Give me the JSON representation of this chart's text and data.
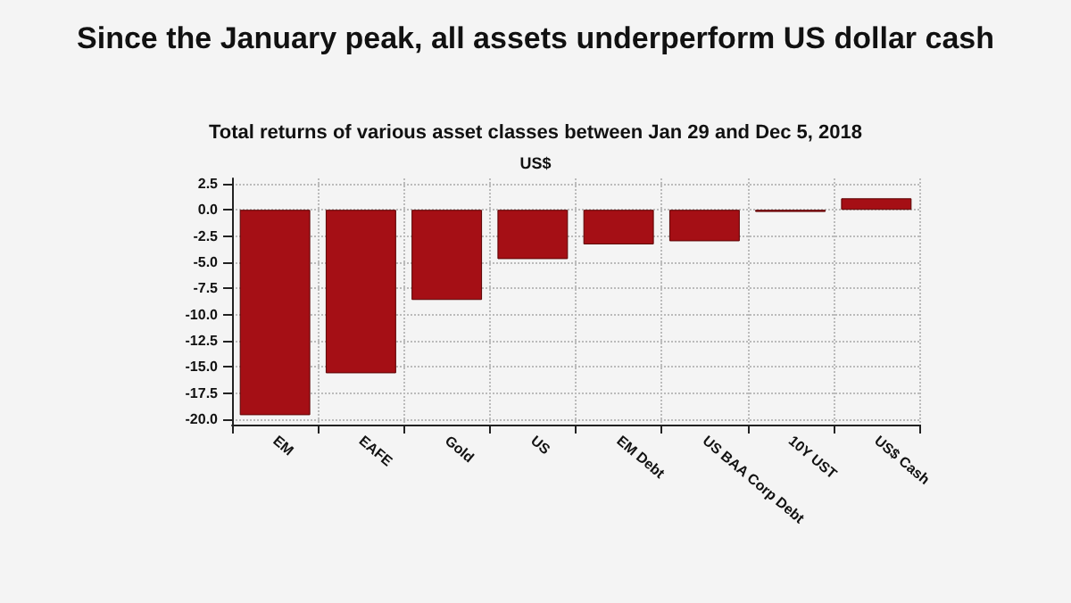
{
  "chart_data": {
    "type": "bar",
    "title": "Since the January peak, all assets underperform US dollar cash",
    "subtitle": "Total returns of various asset classes between Jan 29 and Dec 5, 2018",
    "ylabel": "US$",
    "categories": [
      "EM",
      "EAFE",
      "Gold",
      "US",
      "EM Debt",
      "US BAA Corp Debt",
      "10Y UST",
      "US$ Cash"
    ],
    "values": [
      -19.6,
      -15.6,
      -8.6,
      -4.7,
      -3.3,
      -3.0,
      -0.2,
      1.1
    ],
    "color": "#a50f15",
    "ylim": [
      -20.5,
      3
    ],
    "yticks": [
      {
        "value": -20,
        "label": "-20.0"
      },
      {
        "value": -17.5,
        "label": "-17.5"
      },
      {
        "value": -15,
        "label": "-15.0"
      },
      {
        "value": -12.5,
        "label": "-12.5"
      },
      {
        "value": -10,
        "label": "-10.0"
      },
      {
        "value": -7.5,
        "label": "-7.5"
      },
      {
        "value": -5,
        "label": "-5.0"
      },
      {
        "value": -2.5,
        "label": "-2.5"
      },
      {
        "value": 0,
        "label": "0.0"
      },
      {
        "value": 2.5,
        "label": "2.5"
      }
    ],
    "grid": true
  }
}
